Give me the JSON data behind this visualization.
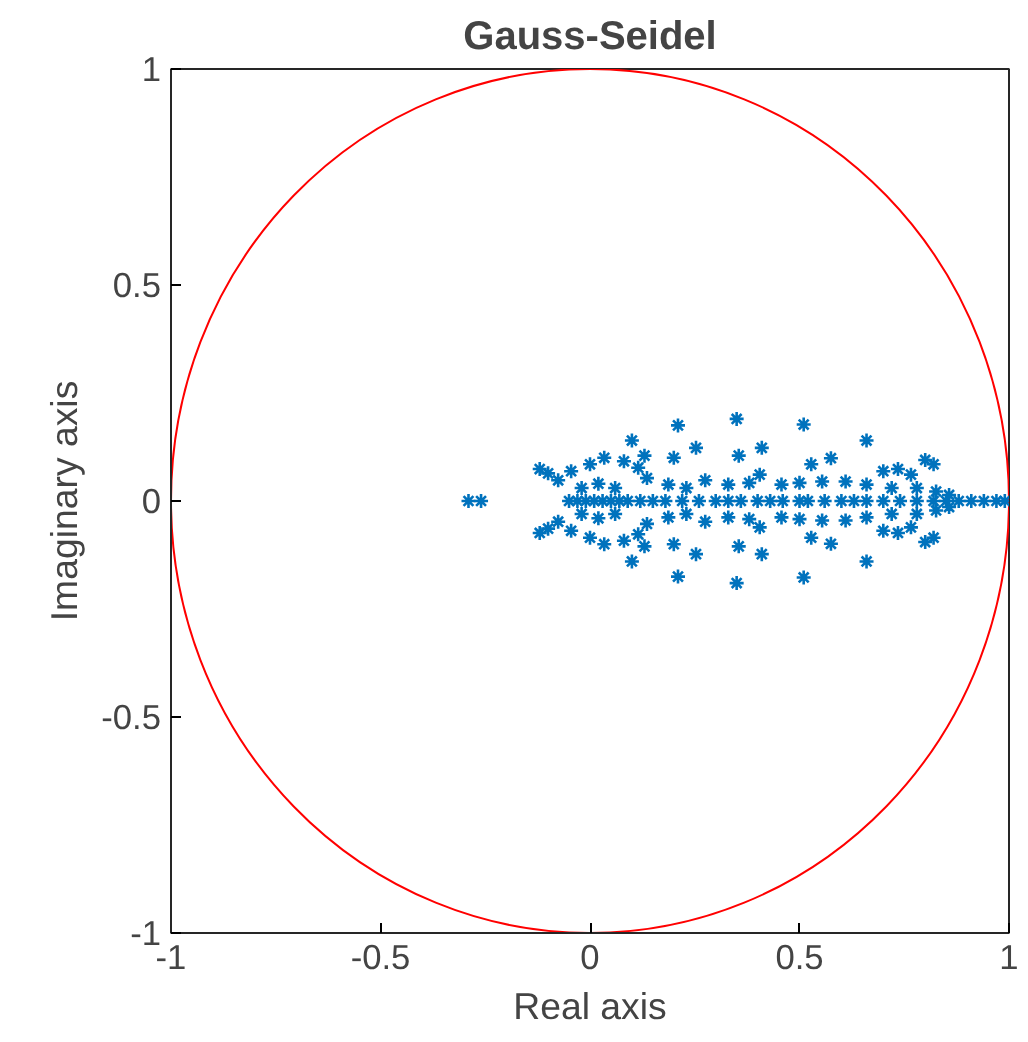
{
  "chart_data": {
    "type": "scatter",
    "title": "Gauss-Seidel",
    "xlabel": "Real axis",
    "ylabel": "Imaginary axis",
    "xlim": [
      -1,
      1
    ],
    "ylim": [
      -1,
      1
    ],
    "xticks": [
      -1,
      -0.5,
      0,
      0.5,
      1
    ],
    "yticks": [
      -1,
      -0.5,
      0,
      0.5,
      1
    ],
    "grid": false,
    "marker": "cross",
    "series": [
      {
        "color": "#0072bd",
        "x": [
          -0.29,
          -0.26,
          -0.05,
          -0.03,
          -0.01,
          0.01,
          0.03,
          0.05,
          0.07,
          0.09,
          0.12,
          0.15,
          0.18,
          0.22,
          0.26,
          0.3,
          0.33,
          0.36,
          0.4,
          0.43,
          0.46,
          0.5,
          0.52,
          0.56,
          0.6,
          0.63,
          0.66,
          0.7,
          0.74,
          0.78,
          0.82,
          0.85,
          0.88,
          0.91,
          0.94,
          0.97,
          0.99,
          -0.12,
          -0.1,
          -0.076,
          -0.045,
          0,
          0.034,
          0.081,
          0.1,
          0.13,
          0.115,
          0.136,
          0.21,
          0.2,
          0.253,
          0.187,
          0.23,
          0.275,
          -0.02,
          0.02,
          0.06,
          0.35,
          0.51,
          0.355,
          0.41,
          0.66,
          0.33,
          0.38,
          0.405,
          0.457,
          0.5,
          0.528,
          0.554,
          0.575,
          0.61,
          0.66,
          0.7,
          0.735,
          0.766,
          0.8,
          0.82,
          0.72,
          0.78,
          0.826,
          0.857,
          -0.12,
          -0.1,
          -0.076,
          -0.045,
          0,
          0.034,
          0.081,
          0.1,
          0.13,
          0.115,
          0.136,
          0.21,
          0.2,
          0.253,
          0.187,
          0.23,
          0.275,
          -0.02,
          0.02,
          0.06,
          0.35,
          0.51,
          0.355,
          0.41,
          0.66,
          0.33,
          0.38,
          0.405,
          0.457,
          0.5,
          0.528,
          0.554,
          0.575,
          0.61,
          0.66,
          0.7,
          0.735,
          0.766,
          0.8,
          0.82,
          0.72,
          0.78,
          0.826,
          0.857
        ],
        "values": [
          0,
          0,
          0,
          0,
          0,
          0,
          0,
          0,
          0,
          0,
          0,
          0,
          0,
          0,
          0,
          0,
          0,
          0,
          0,
          0,
          0,
          0,
          0,
          0,
          0,
          0,
          0,
          0,
          0,
          0,
          0,
          0,
          0,
          0,
          0,
          0,
          0,
          0.074,
          0.064,
          0.048,
          0.069,
          0.085,
          0.1,
          0.092,
          0.14,
          0.105,
          0.077,
          0.053,
          0.175,
          0.1,
          0.123,
          0.038,
          0.03,
          0.048,
          0.03,
          0.04,
          0.03,
          0.19,
          0.177,
          0.105,
          0.123,
          0.14,
          0.038,
          0.042,
          0.061,
          0.038,
          0.042,
          0.085,
          0.045,
          0.099,
          0.045,
          0.038,
          0.069,
          0.074,
          0.061,
          0.095,
          0.085,
          0.03,
          0.03,
          0.022,
          0.014,
          -0.074,
          -0.064,
          -0.048,
          -0.069,
          -0.085,
          -0.1,
          -0.092,
          -0.14,
          -0.105,
          -0.077,
          -0.053,
          -0.175,
          -0.1,
          -0.123,
          -0.038,
          -0.03,
          -0.048,
          -0.03,
          -0.04,
          -0.03,
          -0.19,
          -0.177,
          -0.105,
          -0.123,
          -0.14,
          -0.038,
          -0.042,
          -0.061,
          -0.038,
          -0.042,
          -0.085,
          -0.045,
          -0.099,
          -0.045,
          -0.038,
          -0.069,
          -0.074,
          -0.061,
          -0.095,
          -0.085,
          -0.03,
          -0.03,
          -0.022,
          -0.014
        ]
      }
    ]
  }
}
